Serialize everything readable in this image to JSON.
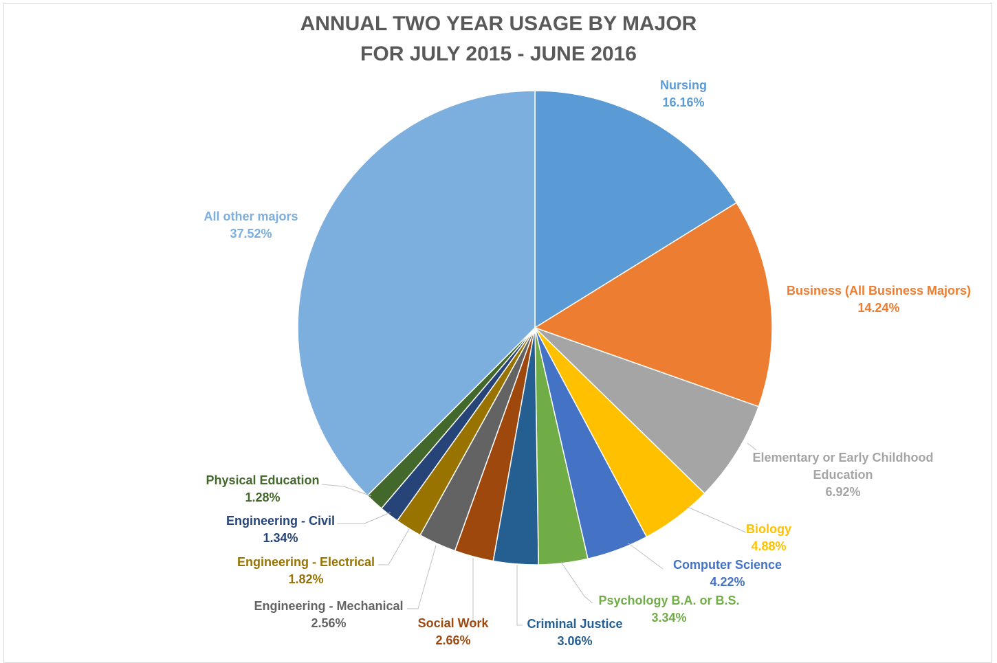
{
  "chart_data": {
    "type": "pie",
    "title": [
      "ANNUAL TWO YEAR USAGE BY MAJOR",
      "FOR JULY 2015 - JUNE 2016"
    ],
    "slices": [
      {
        "label": "Nursing",
        "value": 16.16,
        "value_label": "16.16%",
        "color": "#5b9bd5",
        "label_lines": [
          "Nursing"
        ]
      },
      {
        "label": "Business (All Business Majors)",
        "value": 14.24,
        "value_label": "14.24%",
        "color": "#ed7d31",
        "label_lines": [
          "Business (All Business Majors)"
        ]
      },
      {
        "label": "Elementary or Early Childhood Education",
        "value": 6.92,
        "value_label": "6.92%",
        "color": "#a5a5a5",
        "label_lines": [
          "Elementary or Early Childhood",
          "Education"
        ]
      },
      {
        "label": "Biology",
        "value": 4.88,
        "value_label": "4.88%",
        "color": "#ffc000",
        "label_lines": [
          "Biology"
        ]
      },
      {
        "label": "Computer Science",
        "value": 4.22,
        "value_label": "4.22%",
        "color": "#4472c4",
        "label_lines": [
          "Computer Science"
        ]
      },
      {
        "label": "Psychology B.A. or B.S.",
        "value": 3.34,
        "value_label": "3.34%",
        "color": "#70ad47",
        "label_lines": [
          "Psychology B.A. or B.S."
        ]
      },
      {
        "label": "Criminal Justice",
        "value": 3.06,
        "value_label": "3.06%",
        "color": "#255e91",
        "label_lines": [
          "Criminal Justice"
        ]
      },
      {
        "label": "Social Work",
        "value": 2.66,
        "value_label": "2.66%",
        "color": "#9e480e",
        "label_lines": [
          "Social Work"
        ]
      },
      {
        "label": "Engineering - Mechanical",
        "value": 2.56,
        "value_label": "2.56%",
        "color": "#636363",
        "label_lines": [
          "Engineering - Mechanical"
        ]
      },
      {
        "label": "Engineering - Electrical",
        "value": 1.82,
        "value_label": "1.82%",
        "color": "#997300",
        "label_lines": [
          "Engineering - Electrical"
        ]
      },
      {
        "label": "Engineering - Civil",
        "value": 1.34,
        "value_label": "1.34%",
        "color": "#264478",
        "label_lines": [
          "Engineering - Civil"
        ]
      },
      {
        "label": "Physical Education",
        "value": 1.28,
        "value_label": "1.28%",
        "color": "#43682b",
        "label_lines": [
          "Physical Education"
        ]
      },
      {
        "label": "All other majors",
        "value": 37.52,
        "value_label": "37.52%",
        "color": "#7cafdd",
        "label_lines": [
          "All other majors"
        ]
      }
    ],
    "start_angle_deg": 0,
    "direction": "clockwise",
    "legend": "none",
    "data_labels": "outside with leader lines"
  }
}
